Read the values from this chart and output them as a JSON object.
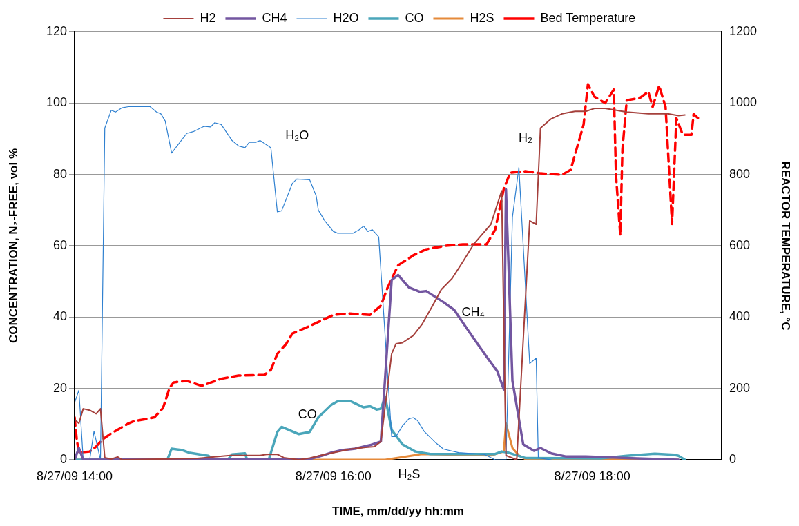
{
  "chart_data": {
    "type": "line",
    "xlabel": "TIME, mm/dd/yy hh:mm",
    "ylabel": "CONCENTRATION, N₂-FREE, vol %",
    "y2label": "REACTOR TEMPERATURE, °C",
    "xlim": [
      "--08-27T14:00",
      "--08-27T19:00"
    ],
    "xticks": [
      {
        "value": "--08-27T14:00",
        "label": "8/27/09 14:00"
      },
      {
        "value": "--08-27T16:00",
        "label": "8/27/09 16:00"
      },
      {
        "value": "--08-27T18:00",
        "label": "8/27/09 18:00"
      }
    ],
    "ylim": [
      0,
      120
    ],
    "yticks": [
      0,
      20,
      40,
      60,
      80,
      100,
      120
    ],
    "y2lim": [
      0,
      1200
    ],
    "y2ticks": [
      0,
      200,
      400,
      600,
      800,
      1000,
      1200
    ],
    "grid": "y",
    "legend": "top",
    "marker": "none",
    "series": [
      {
        "name": "H2",
        "color": "#a5403c",
        "x": [
          "--08-27T14:00",
          "--08-27T14:02",
          "--08-27T14:04",
          "--08-27T14:07",
          "--08-27T14:10",
          "--08-27T14:12",
          "--08-27T14:14",
          "--08-27T14:17",
          "--08-27T14:20",
          "--08-27T14:22",
          "--08-27T14:57",
          "--08-27T15:12",
          "--08-27T15:26",
          "--08-27T15:29",
          "--08-27T15:34",
          "--08-27T15:37",
          "--08-27T15:44",
          "--08-27T15:49",
          "--08-27T15:56",
          "--08-27T16:00",
          "--08-27T16:08",
          "--08-27T16:15",
          "--08-27T16:19",
          "--08-27T16:22",
          "--08-27T16:27",
          "--08-27T16:29",
          "--08-27T16:32",
          "--08-27T16:37",
          "--08-27T16:41",
          "--08-27T16:46",
          "--08-27T16:50",
          "--08-27T16:55",
          "--08-27T17:00",
          "--08-27T17:05",
          "--08-27T17:13",
          "--08-27T17:18",
          "--08-27T17:20",
          "--08-27T17:25",
          "--08-27T17:31",
          "--08-27T17:34",
          "--08-27T17:36",
          "--08-27T17:41",
          "--08-27T17:46",
          "--08-27T17:52",
          "--08-27T17:57",
          "--08-27T18:01",
          "--08-27T18:06",
          "--08-27T18:16",
          "--08-27T18:20",
          "--08-27T18:26",
          "--08-27T18:35",
          "--08-27T18:40",
          "--08-27T18:43"
        ],
        "values": [
          11.3,
          10.2,
          14.3,
          13.9,
          12.9,
          14.3,
          0.6,
          0.2,
          0.8,
          0,
          0.4,
          1.2,
          1.2,
          1.5,
          1.5,
          0.6,
          0,
          0.5,
          1.5,
          2,
          3,
          3.5,
          3.7,
          5.1,
          29.7,
          32.5,
          32.8,
          34.8,
          37.9,
          43.2,
          47.7,
          50.8,
          55.5,
          60.4,
          66,
          75.4,
          1.2,
          0,
          67,
          66,
          93,
          95.6,
          97,
          97.7,
          97.7,
          98.5,
          98.5,
          97.5,
          97.3,
          97,
          97,
          96.5,
          96.7
        ]
      },
      {
        "name": "CH4",
        "color": "#7356a0",
        "x": [
          "--08-27T14:00",
          "--08-27T14:02",
          "--08-27T14:04",
          "--08-27T15:49",
          "--08-27T15:55",
          "--08-27T15:59",
          "--08-27T16:04",
          "--08-27T16:10",
          "--08-27T16:17",
          "--08-27T16:22",
          "--08-27T16:27",
          "--08-27T16:30",
          "--08-27T16:35",
          "--08-27T16:40",
          "--08-27T16:43",
          "--08-27T16:51",
          "--08-27T16:56",
          "--08-27T17:03",
          "--08-27T17:11",
          "--08-27T17:16",
          "--08-27T17:19",
          "--08-27T17:20",
          "--08-27T17:23",
          "--08-27T17:28",
          "--08-27T17:33",
          "--08-27T17:36",
          "--08-27T17:41",
          "--08-27T17:48",
          "--08-27T17:57",
          "--08-27T18:16",
          "--08-27T18:40"
        ],
        "values": [
          0,
          3.3,
          0,
          0.2,
          1.2,
          2,
          2.7,
          3.1,
          4.1,
          5.1,
          50.4,
          51.8,
          48.3,
          47.1,
          47.3,
          44.2,
          42,
          35.8,
          28.9,
          24.8,
          19.7,
          75.8,
          22.1,
          4.3,
          2.5,
          3.3,
          1.8,
          0.9,
          0.9,
          0.5,
          0
        ]
      },
      {
        "name": "H2O",
        "color": "#2f80d0",
        "x": [
          "--08-27T14:00",
          "--08-27T14:02",
          "--08-27T14:04",
          "--08-27T14:07",
          "--08-27T14:09",
          "--08-27T14:12",
          "--08-27T14:14",
          "--08-27T14:17",
          "--08-27T14:19",
          "--08-27T14:22",
          "--08-27T14:25",
          "--08-27T14:35",
          "--08-27T14:38",
          "--08-27T14:40",
          "--08-27T14:42",
          "--08-27T14:45",
          "--08-27T14:52",
          "--08-27T14:55",
          "--08-27T15:00",
          "--08-27T15:03",
          "--08-27T15:05",
          "--08-27T15:08",
          "--08-27T15:13",
          "--08-27T15:16",
          "--08-27T15:19",
          "--08-27T15:21",
          "--08-27T15:24",
          "--08-27T15:26",
          "--08-27T15:31",
          "--08-27T15:34",
          "--08-27T15:36",
          "--08-27T15:41",
          "--08-27T15:43",
          "--08-27T15:49",
          "--08-27T15:52",
          "--08-27T15:53",
          "--08-27T15:56",
          "--08-27T16:00",
          "--08-27T16:02",
          "--08-27T16:09",
          "--08-27T16:12",
          "--08-27T16:14",
          "--08-27T16:16",
          "--08-27T16:18",
          "--08-27T16:21",
          "--08-27T16:27",
          "--08-27T16:29",
          "--08-27T16:32",
          "--08-27T16:35",
          "--08-27T16:37",
          "--08-27T16:39",
          "--08-27T16:42",
          "--08-27T16:47",
          "--08-27T16:51",
          "--08-27T16:58",
          "--08-27T17:10",
          "--08-27T17:15",
          "--08-27T17:20",
          "--08-27T17:23",
          "--08-27T17:26",
          "--08-27T17:31",
          "--08-27T17:34",
          "--08-27T17:35",
          "--08-27T17:41"
        ],
        "values": [
          16,
          19.5,
          0,
          0,
          8,
          0,
          93,
          98,
          97.5,
          98.7,
          99,
          99,
          97.5,
          97,
          95,
          86,
          91.5,
          92,
          93.5,
          93.3,
          94.5,
          94,
          89.5,
          88,
          87.5,
          89,
          89,
          89.5,
          87.5,
          69.5,
          69.8,
          77.5,
          78.7,
          78.5,
          74,
          70,
          67,
          64,
          63.5,
          63.5,
          64.5,
          65.5,
          64,
          64.5,
          62.5,
          6.5,
          6.5,
          9.5,
          11.5,
          11.8,
          11,
          8,
          5,
          3,
          2,
          1.5,
          0,
          0,
          68,
          82,
          27,
          28.5,
          0.5,
          0
        ]
      },
      {
        "name": "CO",
        "color": "#4aa6ba",
        "x": [
          "--08-27T14:00",
          "--08-27T14:43",
          "--08-27T14:45",
          "--08-27T14:50",
          "--08-27T14:53",
          "--08-27T15:02",
          "--08-27T15:05",
          "--08-27T15:11",
          "--08-27T15:13",
          "--08-27T15:19",
          "--08-27T15:20",
          "--08-27T15:30",
          "--08-27T15:34",
          "--08-27T15:36",
          "--08-27T15:40",
          "--08-27T15:44",
          "--08-27T15:49",
          "--08-27T15:53",
          "--08-27T15:59",
          "--08-27T16:02",
          "--08-27T16:08",
          "--08-27T16:14",
          "--08-27T16:17",
          "--08-27T16:20",
          "--08-27T16:22",
          "--08-27T16:24",
          "--08-27T16:27",
          "--08-27T16:32",
          "--08-27T16:38",
          "--08-27T16:45",
          "--08-27T17:15",
          "--08-27T17:18",
          "--08-27T17:21",
          "--08-27T17:29",
          "--08-27T18:04",
          "--08-27T18:16",
          "--08-27T18:29",
          "--08-27T18:38",
          "--08-27T18:40",
          "--08-27T18:43"
        ],
        "values": [
          0,
          0,
          3.1,
          2.7,
          2,
          1.1,
          0,
          0,
          1.5,
          1.8,
          0,
          0,
          7.8,
          9.2,
          8.2,
          7.2,
          7.8,
          11.9,
          15.4,
          16.4,
          16.4,
          14.7,
          15,
          14.1,
          14.3,
          17.6,
          8.4,
          4.3,
          2.3,
          1.6,
          1.6,
          2.3,
          2,
          0.5,
          0.4,
          1.1,
          1.7,
          1.4,
          1.1,
          0
        ]
      },
      {
        "name": "H2S",
        "color": "#e58a3a",
        "x": [
          "--08-27T14:00",
          "--08-27T16:24",
          "--08-27T16:37",
          "--08-27T16:41",
          "--08-27T17:13",
          "--08-27T17:19",
          "--08-27T17:20",
          "--08-27T17:23",
          "--08-27T17:26",
          "--08-27T17:29",
          "--08-27T18:40"
        ],
        "values": [
          0,
          0,
          1.2,
          1.6,
          1.2,
          2.3,
          10.2,
          3.3,
          1.2,
          0.2,
          0
        ]
      },
      {
        "name": "Bed Temperature",
        "color": "#ff0000",
        "axis": "y2",
        "line_style": "dashed",
        "x": [
          "--08-27T14:00",
          "--08-27T14:01",
          "--08-27T14:02",
          "--08-27T14:07",
          "--08-27T14:10",
          "--08-27T14:13",
          "--08-27T14:17",
          "--08-27T14:25",
          "--08-27T14:28",
          "--08-27T14:34",
          "--08-27T14:37",
          "--08-27T14:41",
          "--08-27T14:44",
          "--08-27T14:46",
          "--08-27T14:52",
          "--08-27T14:59",
          "--08-27T15:08",
          "--08-27T15:16",
          "--08-27T15:28",
          "--08-27T15:31",
          "--08-27T15:34",
          "--08-27T15:38",
          "--08-27T15:41",
          "--08-27T15:49",
          "--08-27T16:00",
          "--08-27T16:07",
          "--08-27T16:17",
          "--08-27T16:22",
          "--08-27T16:25",
          "--08-27T16:30",
          "--08-27T16:37",
          "--08-27T16:43",
          "--08-27T16:52",
          "--08-27T17:00",
          "--08-27T17:11",
          "--08-27T17:15",
          "--08-27T17:19",
          "--08-27T17:22",
          "--08-27T17:29",
          "--08-27T17:36",
          "--08-27T17:46",
          "--08-27T17:50",
          "--08-27T17:56",
          "--08-27T17:58",
          "--08-27T18:01",
          "--08-27T18:06",
          "--08-27T18:10",
          "--08-27T18:11",
          "--08-27T18:13",
          "--08-27T18:14",
          "--08-27T18:16",
          "--08-27T18:22",
          "--08-27T18:26",
          "--08-27T18:28",
          "--08-27T18:31",
          "--08-27T18:34",
          "--08-27T18:37",
          "--08-27T18:39",
          "--08-27T18:42",
          "--08-27T18:46",
          "--08-27T18:47",
          "--08-27T18:49"
        ],
        "values": [
          119,
          57,
          20,
          23,
          37,
          57,
          74,
          102,
          109,
          115,
          119,
          145,
          201,
          217,
          221,
          207,
          227,
          236,
          238,
          252,
          297,
          324,
          354,
          375,
          406,
          410,
          406,
          432,
          481,
          545,
          573,
          590,
          600,
          604,
          604,
          645,
          760,
          805,
          809,
          803,
          799,
          813,
          940,
          1053,
          1018,
          1000,
          1038,
          799,
          629,
          870,
          1008,
          1014,
          1032,
          989,
          1049,
          989,
          661,
          958,
          911,
          911,
          969,
          958
        ]
      }
    ],
    "annotations": [
      "H₂O",
      "H₂",
      "CH₄",
      "CO",
      "H₂S"
    ]
  }
}
